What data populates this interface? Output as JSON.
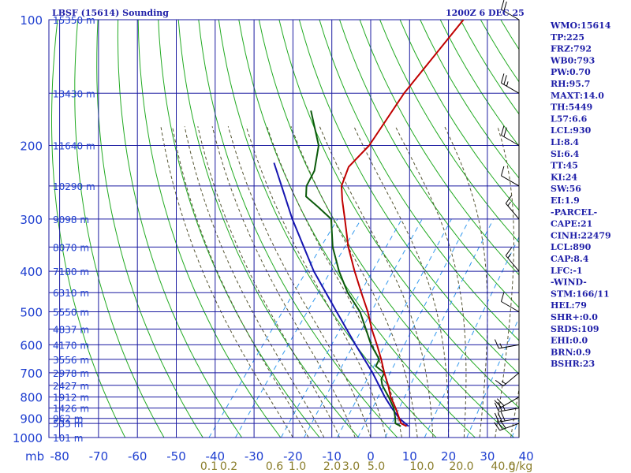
{
  "header": {
    "station": "LBSF (15614) Sounding",
    "valid": "1200Z  6 DEC 25"
  },
  "indices": [
    "WMO:15614",
    "TP:225",
    "FRZ:792",
    "WB0:793",
    "PW:0.70",
    "RH:95.7",
    "MAXT:14.0",
    "TH:5449",
    "L57:6.6",
    "LCL:930",
    "LI:8.4",
    "SI:6.4",
    "TT:45",
    "KI:24",
    "SW:56",
    "EI:1.9",
    "-PARCEL-",
    "CAPE:21",
    "CINH:22479",
    "LCL:890",
    "CAP:8.4",
    "LFC:-1",
    "-WIND-",
    "STM:166/11",
    "HEL:79",
    "SHR+:0.0",
    "SRDS:109",
    "EHI:0.0",
    "BRN:0.9",
    "BSHR:23"
  ],
  "colors": {
    "grid": "#1a1aa0",
    "dry_adiabat": "#22aa22",
    "moist_adiabat": "#555533",
    "mixing_ratio": "#3399ee",
    "temperature": "#c00000",
    "dewpoint": "#0b5a0b",
    "parcel": "#1515b0",
    "wind": "#000000",
    "text": "#1f1fa8",
    "mixing_label": "#8a7d2a"
  },
  "chart_data": {
    "type": "skew-t log-p sounding",
    "title": "LBSF (15614) Sounding",
    "pressure_ticks": [
      100,
      200,
      300,
      400,
      500,
      600,
      700,
      800,
      900,
      1000
    ],
    "pressure_label": "mb",
    "temperature_ticks": [
      -80,
      -70,
      -60,
      -50,
      -40,
      -30,
      -20,
      -10,
      0,
      10,
      20,
      30,
      40
    ],
    "temperature_tick_labels": [
      "-80",
      "-70",
      "-60",
      "-50",
      "-40",
      "-30",
      "-20",
      "-10",
      "0",
      "10",
      "20",
      "30",
      "40"
    ],
    "height_labels": [
      {
        "p": 100,
        "label": "15350 m"
      },
      {
        "p": 150,
        "label": "13430 m"
      },
      {
        "p": 200,
        "label": "11640 m"
      },
      {
        "p": 250,
        "label": "10290 m"
      },
      {
        "p": 300,
        "label": "9098 m"
      },
      {
        "p": 350,
        "label": "8070 m"
      },
      {
        "p": 400,
        "label": "7180 m"
      },
      {
        "p": 450,
        "label": "6310 m"
      },
      {
        "p": 500,
        "label": "5550 m"
      },
      {
        "p": 550,
        "label": "4837 m"
      },
      {
        "p": 600,
        "label": "4170 m"
      },
      {
        "p": 650,
        "label": "3556 m"
      },
      {
        "p": 700,
        "label": "2978 m"
      },
      {
        "p": 750,
        "label": "2427 m"
      },
      {
        "p": 800,
        "label": "1912 m"
      },
      {
        "p": 850,
        "label": "1426 m"
      },
      {
        "p": 900,
        "label": "962 m"
      },
      {
        "p": 925,
        "label": "533 m"
      },
      {
        "p": 1000,
        "label": "101 m"
      }
    ],
    "mixing_ratio_labels": [
      "0.1",
      "0.2",
      "0.6",
      "1.0",
      "2.0",
      "3.0",
      "5.0",
      "10.0",
      "20.0",
      "40.0",
      "g/kg"
    ],
    "temperature_profile": [
      {
        "p": 940,
        "t": 7.0
      },
      {
        "p": 925,
        "t": 5.0
      },
      {
        "p": 900,
        "t": 3.5
      },
      {
        "p": 850,
        "t": 0.5
      },
      {
        "p": 800,
        "t": -3.0
      },
      {
        "p": 750,
        "t": -6.0
      },
      {
        "p": 700,
        "t": -9.5
      },
      {
        "p": 650,
        "t": -13.0
      },
      {
        "p": 600,
        "t": -17.0
      },
      {
        "p": 550,
        "t": -21.5
      },
      {
        "p": 500,
        "t": -26.0
      },
      {
        "p": 450,
        "t": -31.5
      },
      {
        "p": 400,
        "t": -37.5
      },
      {
        "p": 350,
        "t": -44.0
      },
      {
        "p": 300,
        "t": -50.5
      },
      {
        "p": 270,
        "t": -55.0
      },
      {
        "p": 250,
        "t": -58.0
      },
      {
        "p": 225,
        "t": -60.0
      },
      {
        "p": 200,
        "t": -59.0
      },
      {
        "p": 150,
        "t": -60.5
      },
      {
        "p": 100,
        "t": -60.0
      }
    ],
    "dewpoint_profile": [
      {
        "p": 940,
        "t": 5.5
      },
      {
        "p": 925,
        "t": 3.5
      },
      {
        "p": 900,
        "t": 2.5
      },
      {
        "p": 850,
        "t": 0.0
      },
      {
        "p": 800,
        "t": -3.5
      },
      {
        "p": 750,
        "t": -7.5
      },
      {
        "p": 725,
        "t": -9.0
      },
      {
        "p": 700,
        "t": -9.5
      },
      {
        "p": 675,
        "t": -13.0
      },
      {
        "p": 650,
        "t": -13.5
      },
      {
        "p": 600,
        "t": -18.5
      },
      {
        "p": 550,
        "t": -23.0
      },
      {
        "p": 500,
        "t": -28.0
      },
      {
        "p": 450,
        "t": -35.0
      },
      {
        "p": 400,
        "t": -41.5
      },
      {
        "p": 350,
        "t": -48.0
      },
      {
        "p": 300,
        "t": -54.0
      },
      {
        "p": 280,
        "t": -60.0
      },
      {
        "p": 265,
        "t": -65.0
      },
      {
        "p": 250,
        "t": -67.0
      },
      {
        "p": 230,
        "t": -68.0
      },
      {
        "p": 200,
        "t": -72.0
      },
      {
        "p": 165,
        "t": -81.0
      }
    ],
    "parcel_profile": [
      {
        "p": 940,
        "t": 7.5
      },
      {
        "p": 900,
        "t": 3.5
      },
      {
        "p": 850,
        "t": -0.5
      },
      {
        "p": 800,
        "t": -4.5
      },
      {
        "p": 700,
        "t": -12.5
      },
      {
        "p": 600,
        "t": -22.5
      },
      {
        "p": 500,
        "t": -34.0
      },
      {
        "p": 400,
        "t": -48.0
      },
      {
        "p": 300,
        "t": -64.0
      },
      {
        "p": 220,
        "t": -80.0
      }
    ],
    "winds": [
      {
        "p": 925,
        "dir": 250,
        "kt": 30
      },
      {
        "p": 900,
        "dir": 260,
        "kt": 30
      },
      {
        "p": 850,
        "dir": 260,
        "kt": 25
      },
      {
        "p": 800,
        "dir": 240,
        "kt": 20
      },
      {
        "p": 700,
        "dir": 230,
        "kt": 15
      },
      {
        "p": 600,
        "dir": 260,
        "kt": 15
      },
      {
        "p": 500,
        "dir": 300,
        "kt": 10
      },
      {
        "p": 400,
        "dir": 320,
        "kt": 15
      },
      {
        "p": 300,
        "dir": 320,
        "kt": 15
      },
      {
        "p": 250,
        "dir": 300,
        "kt": 10
      },
      {
        "p": 200,
        "dir": 300,
        "kt": 20
      },
      {
        "p": 150,
        "dir": 300,
        "kt": 25
      },
      {
        "p": 100,
        "dir": 300,
        "kt": 20
      }
    ]
  }
}
